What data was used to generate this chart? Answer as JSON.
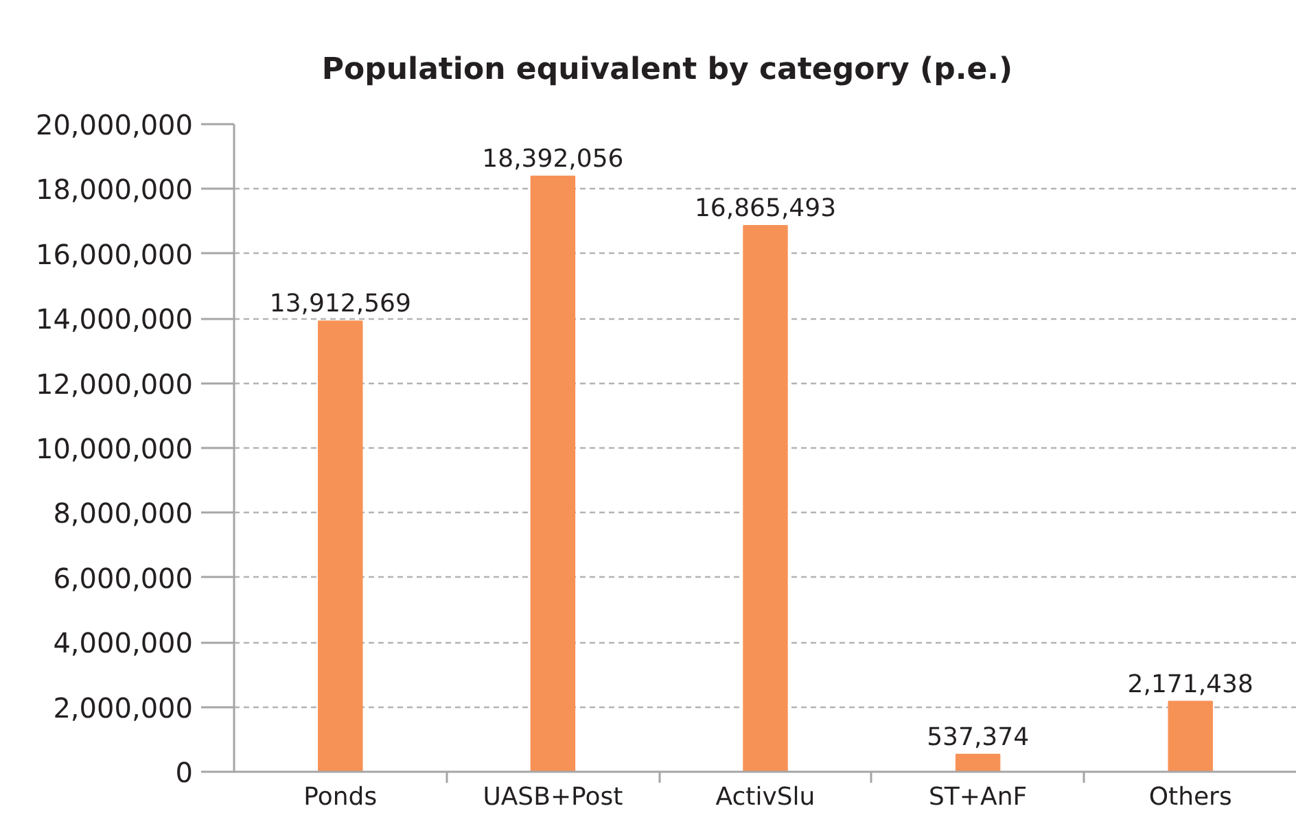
{
  "chart_data": {
    "type": "bar",
    "title": "Population equivalent by category (p.e.)",
    "categories": [
      "Ponds",
      "UASB+Post",
      "ActivSlu",
      "ST+AnF",
      "Others"
    ],
    "values": [
      13912569,
      18392056,
      16865493,
      537374,
      2171438
    ],
    "value_labels": [
      "13,912,569",
      "18,392,056",
      "16,865,493",
      "537,374",
      "2,171,438"
    ],
    "color": "#f79256",
    "ylim": [
      0,
      20000000
    ],
    "yticks": [
      0,
      {
        "value": 2000000,
        "label": "2,000,000"
      },
      {
        "value": 4000000,
        "label": "4,000,000"
      },
      {
        "value": 6000000,
        "label": "6,000,000"
      },
      {
        "value": 8000000,
        "label": "8,000,000"
      },
      {
        "value": 10000000,
        "label": "10,000,000"
      },
      {
        "value": 12000000,
        "label": "12,000,000"
      },
      {
        "value": 14000000,
        "label": "14,000,000"
      },
      {
        "value": 16000000,
        "label": "16,000,000"
      },
      {
        "value": 18000000,
        "label": "18,000,000"
      },
      {
        "value": 20000000,
        "label": "20,000,000"
      }
    ],
    "grid": "y"
  }
}
